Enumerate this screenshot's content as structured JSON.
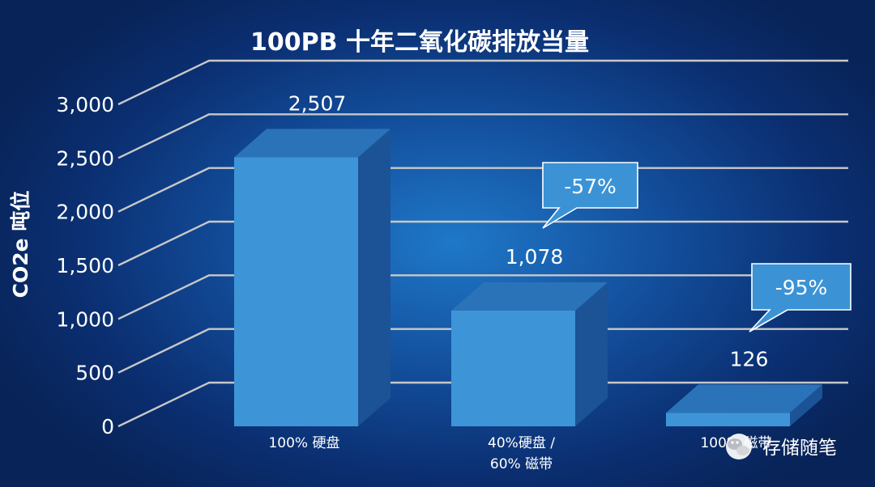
{
  "chart_data": {
    "type": "bar",
    "title": "100PB  十年二氧化碳排放当量",
    "ylabel": "CO2e 吨位",
    "xlabel": "",
    "ylim": [
      0,
      3000
    ],
    "yticks": [
      "0",
      "500",
      "1,000",
      "1,500",
      "2,000",
      "2,500",
      "3,000"
    ],
    "ytick_values": [
      0,
      500,
      1000,
      1500,
      2000,
      2500,
      3000
    ],
    "grid": true,
    "categories": [
      [
        "100%  硬盘"
      ],
      [
        "40%硬盘  /",
        "60%  磁带"
      ],
      [
        "100%  磁带"
      ]
    ],
    "values": [
      2507,
      1078,
      126
    ],
    "data_labels": [
      "2,507",
      "1,078",
      "126"
    ],
    "annotations": [
      {
        "text": "-57%",
        "bar_index": 1
      },
      {
        "text": "-95%",
        "bar_index": 2
      }
    ]
  },
  "colors": {
    "bar_front": "#3d95d8",
    "bar_top": "#2b73b8",
    "bar_side": "#1b5396",
    "grid": "#c8c8c8",
    "callout_fill": "#3b93d6",
    "callout_stroke": "#ffffff"
  },
  "watermark": {
    "icon": "wechat-icon",
    "text": "存储随笔"
  }
}
